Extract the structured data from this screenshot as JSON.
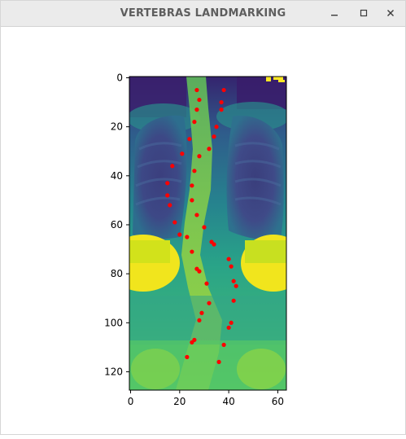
{
  "window": {
    "title": "VERTEBRAS LANDMARKING",
    "buttons": {
      "minimize": "minimize-icon",
      "maximize": "maximize-icon",
      "close": "close-icon"
    }
  },
  "chart_data": {
    "type": "scatter",
    "background": "heatmap image (viridis colormap, 64 x 128 chest x-ray)",
    "colormap": "viridis",
    "xlim": [
      0,
      63
    ],
    "ylim": [
      127,
      0
    ],
    "x_ticks": [
      "0",
      "20",
      "40",
      "60"
    ],
    "y_ticks": [
      "0",
      "20",
      "40",
      "60",
      "80",
      "100",
      "120"
    ],
    "point_color": "#ff0000",
    "points": [
      {
        "x": 27,
        "y": 5
      },
      {
        "x": 38,
        "y": 5
      },
      {
        "x": 28,
        "y": 9
      },
      {
        "x": 37,
        "y": 10
      },
      {
        "x": 27,
        "y": 13
      },
      {
        "x": 37,
        "y": 13
      },
      {
        "x": 26,
        "y": 18
      },
      {
        "x": 35,
        "y": 20
      },
      {
        "x": 24,
        "y": 25
      },
      {
        "x": 34,
        "y": 24
      },
      {
        "x": 21,
        "y": 31
      },
      {
        "x": 32,
        "y": 29
      },
      {
        "x": 17,
        "y": 36
      },
      {
        "x": 28,
        "y": 32
      },
      {
        "x": 15,
        "y": 43
      },
      {
        "x": 26,
        "y": 38
      },
      {
        "x": 15,
        "y": 48
      },
      {
        "x": 25,
        "y": 44
      },
      {
        "x": 16,
        "y": 52
      },
      {
        "x": 25,
        "y": 50
      },
      {
        "x": 18,
        "y": 59
      },
      {
        "x": 27,
        "y": 56
      },
      {
        "x": 20,
        "y": 64
      },
      {
        "x": 30,
        "y": 61
      },
      {
        "x": 23,
        "y": 65
      },
      {
        "x": 33,
        "y": 67
      },
      {
        "x": 25,
        "y": 71
      },
      {
        "x": 34,
        "y": 68
      },
      {
        "x": 27,
        "y": 78
      },
      {
        "x": 40,
        "y": 74
      },
      {
        "x": 28,
        "y": 79
      },
      {
        "x": 41,
        "y": 77
      },
      {
        "x": 31,
        "y": 84
      },
      {
        "x": 42,
        "y": 83
      },
      {
        "x": 32,
        "y": 92
      },
      {
        "x": 43,
        "y": 85
      },
      {
        "x": 29,
        "y": 96
      },
      {
        "x": 42,
        "y": 91
      },
      {
        "x": 28,
        "y": 99
      },
      {
        "x": 41,
        "y": 100
      },
      {
        "x": 26,
        "y": 107
      },
      {
        "x": 40,
        "y": 102
      },
      {
        "x": 25,
        "y": 108
      },
      {
        "x": 38,
        "y": 109
      },
      {
        "x": 23,
        "y": 114
      },
      {
        "x": 36,
        "y": 116
      }
    ],
    "badge_top_right": "yellow pixels at top-right corner"
  }
}
